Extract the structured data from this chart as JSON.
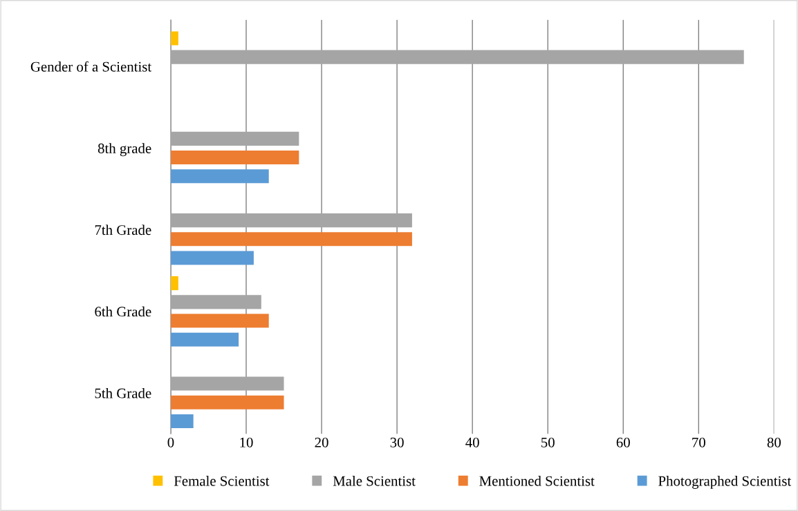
{
  "chart_data": {
    "type": "bar",
    "orientation": "horizontal",
    "categories": [
      "Gender of a Scientist",
      "8th grade",
      "7th Grade",
      "6th Grade",
      "5th Grade"
    ],
    "series": [
      {
        "name": "Female Scientist",
        "color": "#ffc000",
        "values": [
          1,
          null,
          null,
          1,
          null
        ]
      },
      {
        "name": "Male Scientist",
        "color": "#a5a5a5",
        "values": [
          76,
          17,
          32,
          12,
          15
        ]
      },
      {
        "name": "Mentioned Scientist",
        "color": "#ed7d31",
        "values": [
          null,
          17,
          32,
          13,
          15
        ]
      },
      {
        "name": "Photographed Scientist",
        "color": "#5b9bd5",
        "values": [
          null,
          13,
          11,
          9,
          3
        ]
      }
    ],
    "xlim": [
      0,
      80
    ],
    "xticks": [
      0,
      10,
      20,
      30,
      40,
      50,
      60,
      70,
      80
    ],
    "grid": "x",
    "legend": "bottom"
  }
}
